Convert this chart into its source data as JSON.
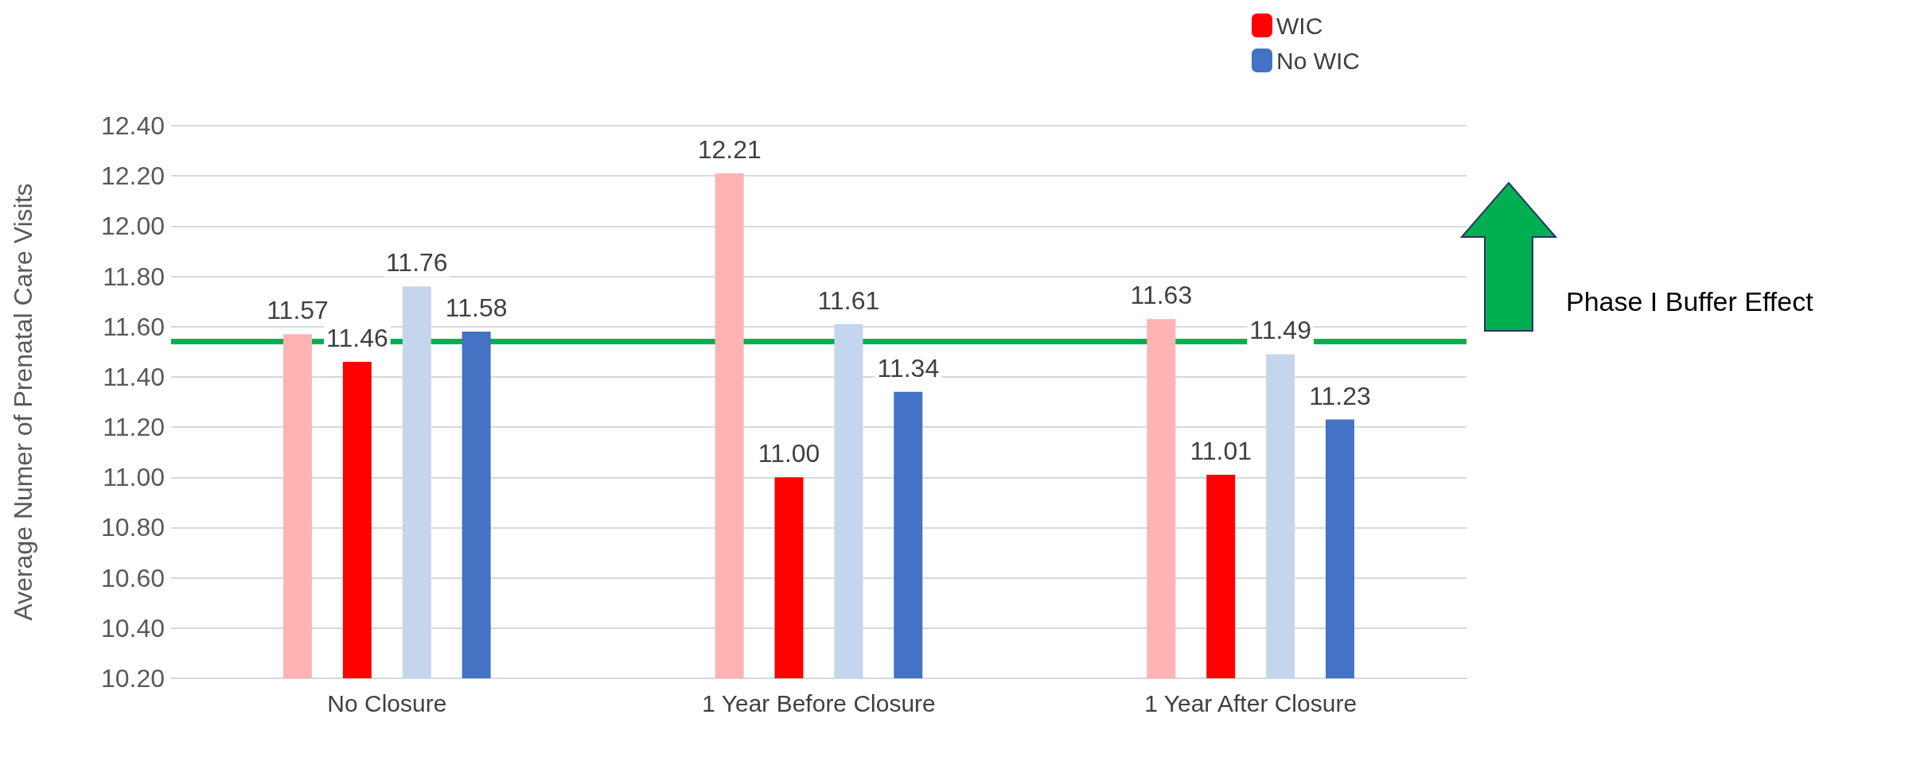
{
  "chart_data": {
    "type": "bar",
    "ylabel": "Average Numer of Prenatal Care Visits",
    "categories": [
      "No Closure",
      "1 Year Before Closure",
      "1 Year After Closure"
    ],
    "series": [
      {
        "color": "#ffb3b3",
        "values": [
          11.57,
          12.21,
          11.63
        ],
        "value_labels": [
          "11.57",
          "12.21",
          "11.63"
        ]
      },
      {
        "name": "WIC",
        "color": "#ff0000",
        "values": [
          11.46,
          11.0,
          11.01
        ],
        "value_labels": [
          "11.46",
          "11.00",
          "11.01"
        ]
      },
      {
        "color": "#c5d5ee",
        "values": [
          11.76,
          11.61,
          11.49
        ],
        "value_labels": [
          "11.76",
          "11.61",
          "11.49"
        ]
      },
      {
        "name": "No WIC",
        "color": "#4472c4",
        "values": [
          11.58,
          11.34,
          11.23
        ],
        "value_labels": [
          "11.58",
          "11.34",
          "11.23"
        ]
      }
    ],
    "ylim": [
      10.2,
      12.4
    ],
    "yticks": [
      {
        "value": 10.2,
        "label": "10.20"
      },
      {
        "value": 10.4,
        "label": "10.40"
      },
      {
        "value": 10.6,
        "label": "10.60"
      },
      {
        "value": 10.8,
        "label": "10.80"
      },
      {
        "value": 11.0,
        "label": "11.00"
      },
      {
        "value": 11.2,
        "label": "11.20"
      },
      {
        "value": 11.4,
        "label": "11.40"
      },
      {
        "value": 11.6,
        "label": "11.60"
      },
      {
        "value": 11.8,
        "label": "11.80"
      },
      {
        "value": 12.0,
        "label": "12.00"
      },
      {
        "value": 12.2,
        "label": "12.20"
      },
      {
        "value": 12.4,
        "label": "12.40"
      }
    ],
    "ref_lines": [
      {
        "axis": "y",
        "value": 11.54,
        "color": "#00b050"
      }
    ],
    "annotations": [
      "Phase I Buffer Effect"
    ],
    "grid": "y",
    "legend": "top right"
  }
}
